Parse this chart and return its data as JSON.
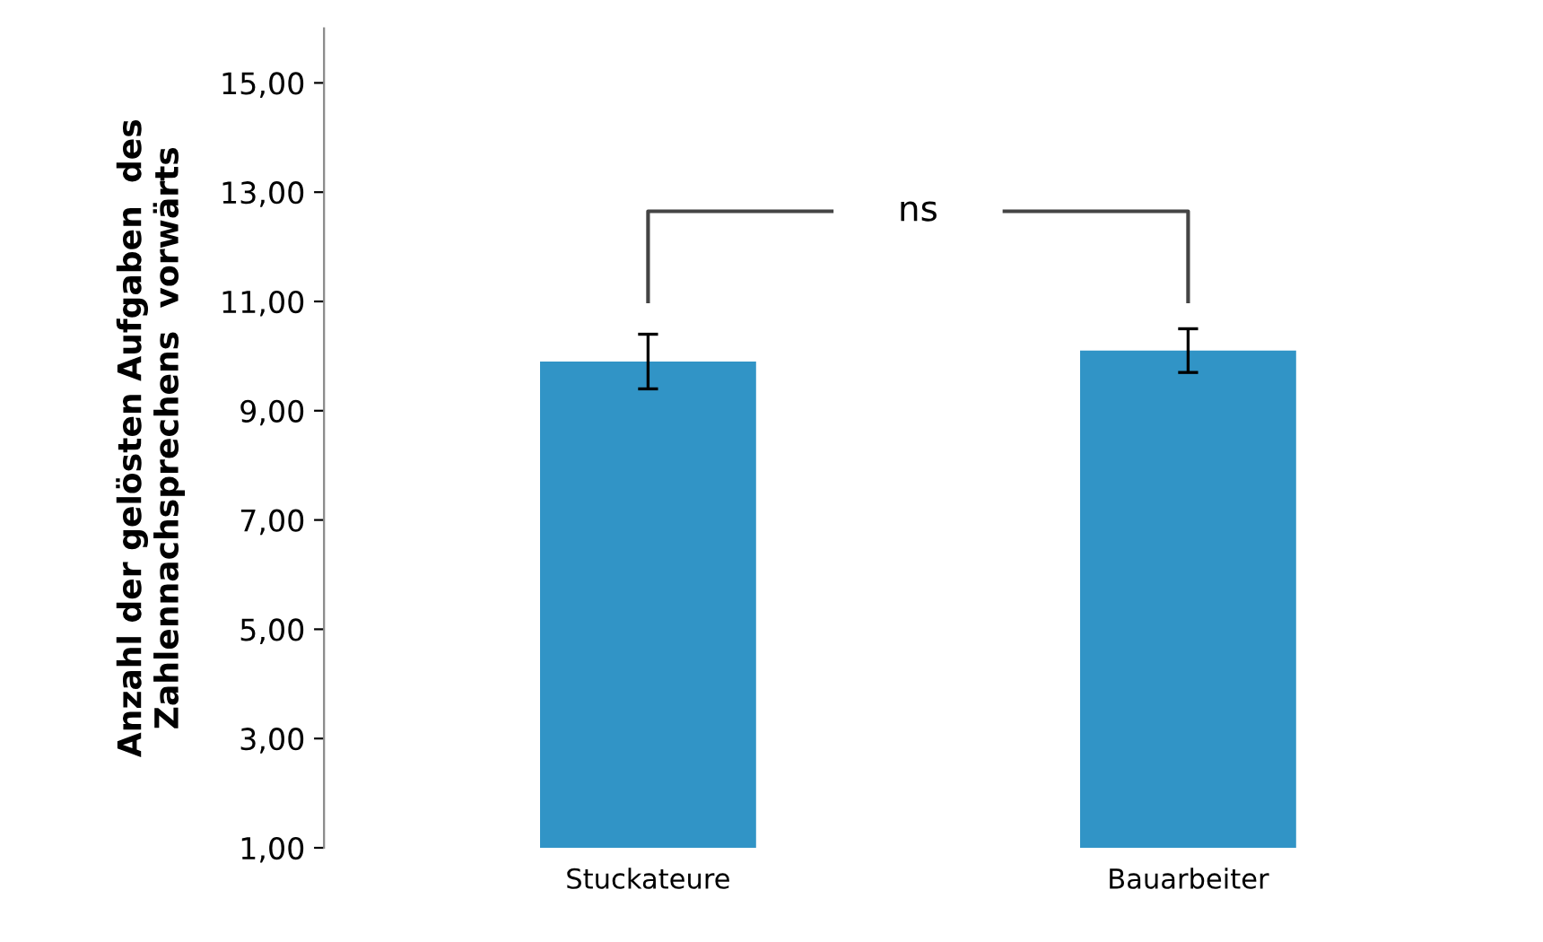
{
  "chart_data": {
    "type": "bar",
    "ylabel": "Anzahl der gelösten Aufgaben  des\nZahlennachsprechens  vorwärts",
    "categories": [
      "Stuckateure",
      "Bauarbeiter"
    ],
    "values": [
      9.9,
      10.1
    ],
    "errors": [
      0.5,
      0.4
    ],
    "color": "#3194c6",
    "ylim": [
      1,
      16
    ],
    "yticks": [
      {
        "value": 1,
        "label": "1,00"
      },
      {
        "value": 3,
        "label": "3,00"
      },
      {
        "value": 5,
        "label": "5,00"
      },
      {
        "value": 7,
        "label": "7,00"
      },
      {
        "value": 9,
        "label": "9,00"
      },
      {
        "value": 11,
        "label": "11,00"
      },
      {
        "value": 13,
        "label": "13,00"
      },
      {
        "value": 15,
        "label": "15,00"
      }
    ],
    "annotations": [
      "ns"
    ],
    "grid": false
  }
}
